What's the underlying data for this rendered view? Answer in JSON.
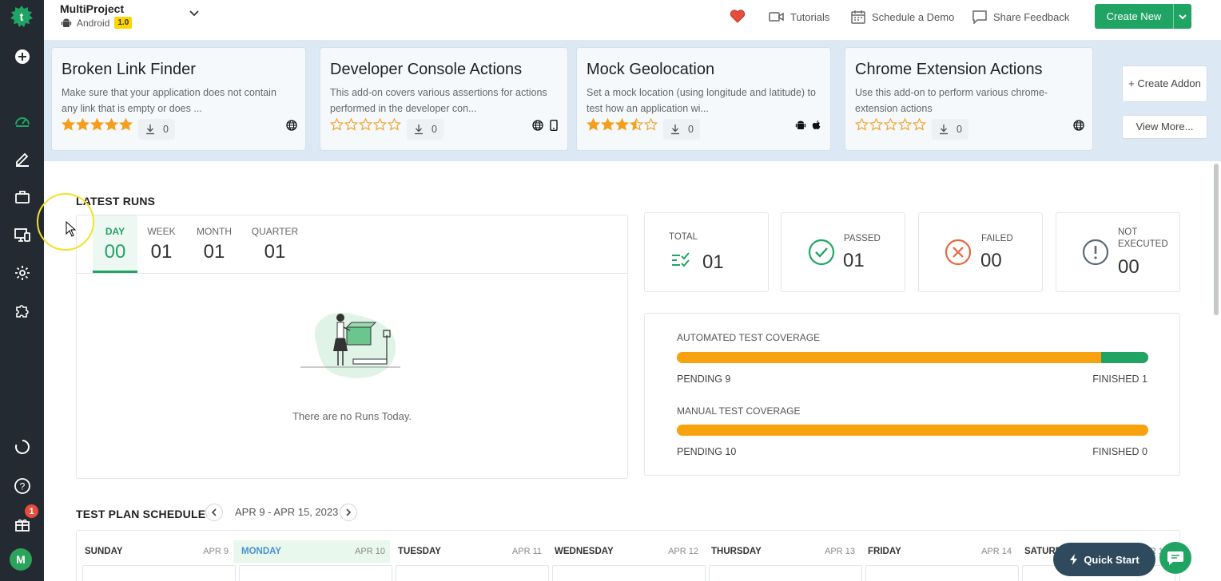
{
  "project": {
    "name": "MultiProject",
    "platform": "Android",
    "version": "1.0"
  },
  "header": {
    "tutorials": "Tutorials",
    "schedule_demo": "Schedule a Demo",
    "share_feedback": "Share Feedback",
    "create_new": "Create New"
  },
  "addons": [
    {
      "title": "Broken Link Finder",
      "desc": "Make sure that your application does not contain any link that is empty or does ...",
      "rating": 5,
      "downloads": "0",
      "platforms": [
        "web"
      ]
    },
    {
      "title": "Developer Console Actions",
      "desc": "This add-on covers various assertions for actions performed in the developer con...",
      "rating": 0,
      "downloads": "0",
      "platforms": [
        "web",
        "mobile"
      ]
    },
    {
      "title": "Mock Geolocation",
      "desc": "Set a mock location (using longitude and latitude) to test how an application wi...",
      "rating": 3.5,
      "downloads": "0",
      "platforms": [
        "android",
        "apple"
      ]
    },
    {
      "title": "Chrome Extension Actions",
      "desc": "Use this add-on to perform various chrome-extension actions",
      "rating": 0,
      "downloads": "0",
      "platforms": [
        "web"
      ]
    }
  ],
  "addon_actions": {
    "create": "+ Create Addon",
    "view_more": "View More..."
  },
  "latest_runs": {
    "title": "LATEST RUNS",
    "tabs": [
      {
        "label": "DAY",
        "value": "00"
      },
      {
        "label": "WEEK",
        "value": "01"
      },
      {
        "label": "MONTH",
        "value": "01"
      },
      {
        "label": "QUARTER",
        "value": "01"
      }
    ],
    "empty_message": "There are no Runs Today."
  },
  "stats": {
    "total": {
      "label": "TOTAL",
      "value": "01"
    },
    "passed": {
      "label": "PASSED",
      "value": "01"
    },
    "failed": {
      "label": "FAILED",
      "value": "00"
    },
    "not_executed": {
      "label": "NOT EXECUTED",
      "label_line1": "NOT",
      "label_line2": "EXECUTED",
      "value": "00"
    }
  },
  "coverage": {
    "automated": {
      "label": "AUTOMATED TEST COVERAGE",
      "pending": "PENDING 9",
      "finished": "FINISHED 1",
      "finished_fraction": 0.1
    },
    "manual": {
      "label": "MANUAL TEST COVERAGE",
      "pending": "PENDING 10",
      "finished": "FINISHED 0",
      "finished_fraction": 0
    }
  },
  "schedule": {
    "title": "TEST PLAN SCHEDULE",
    "range": "APR 9 - APR 15, 2023",
    "days": [
      {
        "name": "SUNDAY",
        "date": "APR 9"
      },
      {
        "name": "MONDAY",
        "date": "APR 10",
        "today": true
      },
      {
        "name": "TUESDAY",
        "date": "APR 11"
      },
      {
        "name": "WEDNESDAY",
        "date": "APR 12"
      },
      {
        "name": "THURSDAY",
        "date": "APR 13"
      },
      {
        "name": "FRIDAY",
        "date": "APR 14"
      },
      {
        "name": "SATURDAY",
        "date": "APR 15"
      }
    ]
  },
  "notifications_count": "1",
  "user_initial": "M",
  "quick_start": "Quick Start",
  "colors": {
    "accent": "#20a464",
    "pending": "#f7a20e",
    "failed": "#e8683c",
    "sidebar": "#232a31"
  }
}
